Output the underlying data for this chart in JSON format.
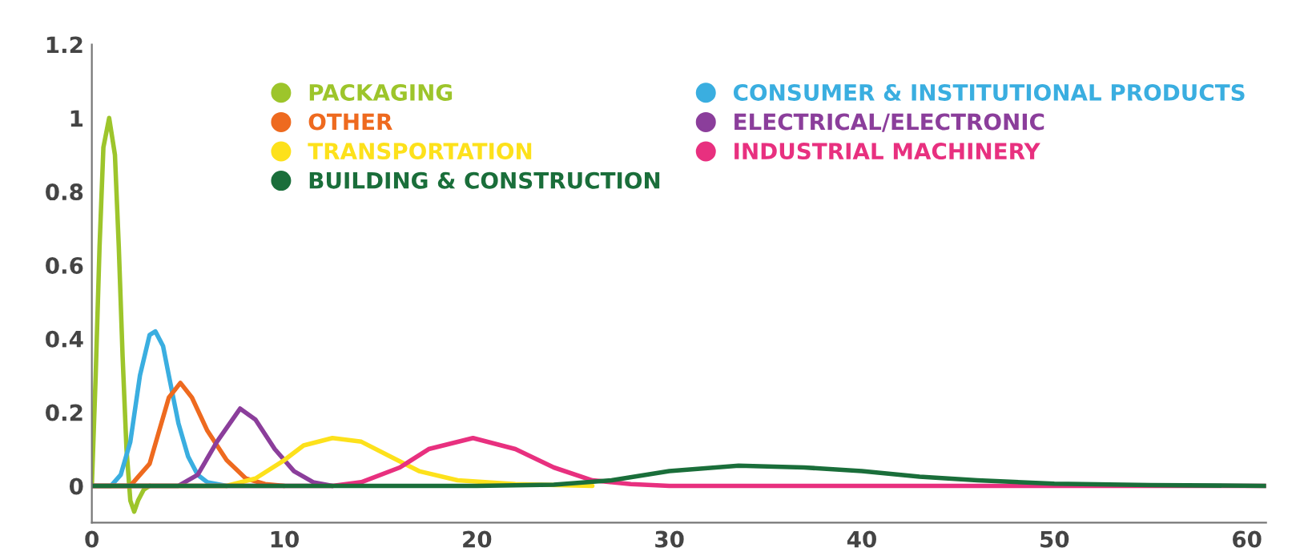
{
  "chart_data": {
    "type": "line",
    "xlim": [
      0,
      61
    ],
    "ylim": [
      -0.1,
      1.2
    ],
    "xticks": [
      0,
      10,
      20,
      30,
      40,
      50,
      60
    ],
    "yticks": [
      0,
      0.2,
      0.4,
      0.6,
      0.8,
      1,
      1.2
    ],
    "grid": false,
    "legend": "top right",
    "marker": "none",
    "line_style": "solid",
    "series": [
      {
        "name": "PACKAGING",
        "color": "#9dc52b",
        "x": [
          0,
          0.2,
          0.4,
          0.6,
          0.9,
          1.2,
          1.4,
          1.6,
          1.8,
          2.0,
          2.2,
          2.4,
          2.7,
          3
        ],
        "values": [
          0,
          0.3,
          0.65,
          0.92,
          1.0,
          0.9,
          0.65,
          0.35,
          0.1,
          -0.04,
          -0.07,
          -0.04,
          -0.01,
          0
        ]
      },
      {
        "name": "CONSUMER & INSTITUTIONAL PRODUCTS",
        "color": "#3aaee0",
        "x": [
          0,
          1,
          1.5,
          2,
          2.5,
          3,
          3.3,
          3.7,
          4,
          4.5,
          5,
          5.5,
          6,
          7
        ],
        "values": [
          0,
          0,
          0.03,
          0.12,
          0.3,
          0.41,
          0.42,
          0.38,
          0.3,
          0.17,
          0.08,
          0.03,
          0.01,
          0
        ]
      },
      {
        "name": "OTHER",
        "color": "#ee6a1f",
        "x": [
          0,
          2,
          3,
          3.5,
          4,
          4.6,
          5.2,
          6,
          7,
          8,
          9,
          10
        ],
        "values": [
          0,
          0,
          0.06,
          0.15,
          0.24,
          0.28,
          0.24,
          0.15,
          0.07,
          0.02,
          0.005,
          0
        ]
      },
      {
        "name": "ELECTRICAL/ELECTRONIC",
        "color": "#8b3e9b",
        "x": [
          0,
          4.5,
          5.5,
          6.5,
          7.7,
          8.5,
          9.5,
          10.5,
          11.5,
          12.5
        ],
        "values": [
          0,
          0,
          0.03,
          0.12,
          0.21,
          0.18,
          0.1,
          0.04,
          0.01,
          0
        ]
      },
      {
        "name": "TRANSPORTATION",
        "color": "#fde11b",
        "x": [
          0,
          7,
          8.5,
          10,
          11,
          12.5,
          14,
          15.5,
          17,
          19,
          22,
          26
        ],
        "values": [
          0,
          0,
          0.02,
          0.07,
          0.11,
          0.13,
          0.12,
          0.08,
          0.04,
          0.015,
          0.005,
          0
        ]
      },
      {
        "name": "INDUSTRIAL MACHINERY",
        "color": "#e8307f",
        "x": [
          0,
          12.5,
          14,
          16,
          17.5,
          19.8,
          22,
          24,
          26,
          28,
          30,
          61
        ],
        "values": [
          0,
          0,
          0.01,
          0.05,
          0.1,
          0.13,
          0.1,
          0.05,
          0.015,
          0.005,
          0,
          0
        ]
      },
      {
        "name": "BUILDING & CONSTRUCTION",
        "color": "#1a6e3a",
        "x": [
          0,
          20,
          24,
          27,
          30,
          33.6,
          37,
          40,
          43,
          46,
          50,
          55,
          61
        ],
        "values": [
          0,
          0,
          0.003,
          0.015,
          0.04,
          0.055,
          0.05,
          0.04,
          0.025,
          0.015,
          0.006,
          0.002,
          0
        ]
      }
    ]
  }
}
